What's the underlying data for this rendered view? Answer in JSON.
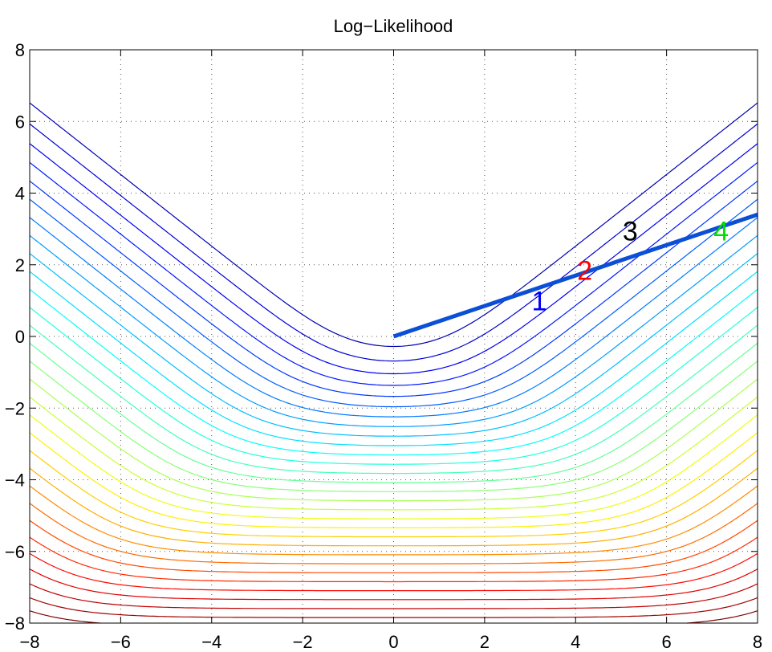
{
  "chart_data": {
    "type": "contour",
    "title": "Log−Likelihood",
    "xlabel": "",
    "ylabel": "",
    "xlim": [
      -8,
      8
    ],
    "ylim": [
      -8,
      8
    ],
    "xticks": [
      -8,
      -6,
      -4,
      -2,
      0,
      2,
      4,
      6,
      8
    ],
    "yticks": [
      -8,
      -6,
      -4,
      -2,
      0,
      2,
      4,
      6,
      8
    ],
    "xtick_labels": [
      "−8",
      "−6",
      "−4",
      "−2",
      "0",
      "2",
      "4",
      "6",
      "8"
    ],
    "ytick_labels": [
      "−8",
      "−6",
      "−4",
      "−2",
      "0",
      "2",
      "4",
      "6",
      "8"
    ],
    "grid": true,
    "grid_style": "dotted",
    "colormap": "jet",
    "contour_levels": 30,
    "surface": "log-likelihood of logistic regression, samples at (1,1) with label +1 and (1,-1) with label -1 (approximated)",
    "path": {
      "points": [
        [
          0,
          0
        ],
        [
          8,
          3.4
        ]
      ],
      "color": "#0a4fd6"
    },
    "point_labels": [
      {
        "text": "1",
        "x": 3.2,
        "y": 1.0,
        "color": "#0000ff"
      },
      {
        "text": "2",
        "x": 4.2,
        "y": 1.85,
        "color": "#ff0000"
      },
      {
        "text": "3",
        "x": 5.2,
        "y": 2.95,
        "color": "#000000"
      },
      {
        "text": "4",
        "x": 7.2,
        "y": 2.95,
        "color": "#00dd00"
      }
    ]
  }
}
